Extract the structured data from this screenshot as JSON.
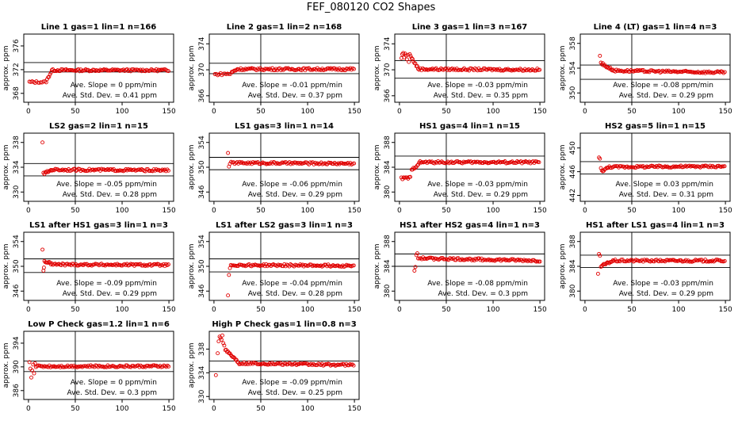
{
  "page_title": "FEF_080120  CO2 Shapes",
  "style": {
    "point_color": "#e00000",
    "line_color": "#000000",
    "background": "#ffffff"
  },
  "ylabel": "approx. ppm",
  "slope_prefix": "Ave. Slope =",
  "slope_unit": "ppm/min",
  "std_prefix": "Ave. Std. Dev. =",
  "std_unit": "ppm",
  "chart_data": [
    {
      "type": "scatter",
      "title": "Line 1 gas=1 lin=1 n=166",
      "x_ticks": [
        0,
        50,
        100,
        150
      ],
      "y_ticks": [
        368,
        372,
        376
      ],
      "ylim": [
        366.5,
        378
      ],
      "hlines": [
        371.6,
        373.2
      ],
      "vline": 50,
      "slope": "0",
      "std": "0.41",
      "segments": [
        {
          "x0": 1,
          "x1": 18,
          "step": 1.5,
          "y0": 369.9,
          "y1": 369.9
        },
        {
          "x0": 19,
          "x1": 25,
          "step": 1,
          "y0": 370,
          "y1": 371.9
        },
        {
          "x0": 26,
          "x1": 150,
          "step": 1.3,
          "y0": 371.9,
          "y1": 371.9
        }
      ],
      "points": []
    },
    {
      "type": "scatter",
      "title": "Line 2 gas=1 lin=2 n=168",
      "x_ticks": [
        0,
        50,
        100,
        150
      ],
      "y_ticks": [
        366,
        370,
        374
      ],
      "ylim": [
        365,
        375.5
      ],
      "hlines": [
        369.4,
        371
      ],
      "vline": 50,
      "slope": "-0.01",
      "std": "0.37",
      "segments": [
        {
          "x0": 1,
          "x1": 18,
          "step": 1.5,
          "y0": 369.3,
          "y1": 369.4
        },
        {
          "x0": 19,
          "x1": 25,
          "step": 1,
          "y0": 369.6,
          "y1": 370.1
        },
        {
          "x0": 26,
          "x1": 150,
          "step": 1.3,
          "y0": 370.1,
          "y1": 370.1
        }
      ],
      "points": []
    },
    {
      "type": "scatter",
      "title": "Line 3 gas=1 lin=3 n=167",
      "x_ticks": [
        0,
        50,
        100,
        150
      ],
      "y_ticks": [
        366,
        370,
        374
      ],
      "ylim": [
        365,
        375.5
      ],
      "hlines": [
        371.4,
        368.7
      ],
      "vline": 50,
      "slope": "-0.03",
      "std": "0.35",
      "segments": [
        {
          "x0": 13,
          "x1": 20,
          "step": 1,
          "y0": 371.8,
          "y1": 370.2
        },
        {
          "x0": 21,
          "x1": 150,
          "step": 1.3,
          "y0": 370.1,
          "y1": 370.0
        }
      ],
      "points": [
        [
          2,
          371.8
        ],
        [
          3,
          372.4
        ],
        [
          4,
          372.6
        ],
        [
          5,
          371.9
        ],
        [
          6,
          372.5
        ],
        [
          7,
          372.2
        ],
        [
          8,
          371.6
        ],
        [
          9,
          372.3
        ],
        [
          10,
          371.2
        ],
        [
          11,
          372.4
        ],
        [
          12,
          372.1
        ]
      ]
    },
    {
      "type": "scatter",
      "title": "Line 4 (LT) gas=1 lin=4 n=3",
      "x_ticks": [
        0,
        50,
        100,
        150
      ],
      "y_ticks": [
        350,
        354,
        358
      ],
      "ylim": [
        348.5,
        359.5
      ],
      "hlines": [
        354.5,
        352.2
      ],
      "vline": 50,
      "slope": "-0.08",
      "std": "0.29",
      "segments": [
        {
          "x0": 20,
          "x1": 30,
          "step": 1,
          "y0": 354.5,
          "y1": 353.7
        },
        {
          "x0": 31,
          "x1": 150,
          "step": 1.3,
          "y0": 353.6,
          "y1": 353.3
        }
      ],
      "points": [
        [
          16,
          356
        ],
        [
          17,
          354.9
        ],
        [
          18,
          354.6
        ],
        [
          19,
          354.8
        ]
      ]
    },
    {
      "type": "scatter",
      "title": "LS2 gas=2 lin=1 n=15",
      "x_ticks": [
        0,
        50,
        100,
        150
      ],
      "y_ticks": [
        330,
        334,
        338
      ],
      "ylim": [
        328.5,
        339.5
      ],
      "hlines": [
        334.6,
        332.6
      ],
      "vline": 50,
      "slope": "-0.05",
      "std": "0.28",
      "segments": [
        {
          "x0": 17,
          "x1": 25,
          "step": 1,
          "y0": 333,
          "y1": 333.6
        },
        {
          "x0": 26,
          "x1": 150,
          "step": 1.3,
          "y0": 333.6,
          "y1": 333.5
        }
      ],
      "points": [
        [
          15,
          338
        ],
        [
          16,
          333.1
        ]
      ]
    },
    {
      "type": "scatter",
      "title": "LS1 gas=3 lin=1 n=14",
      "x_ticks": [
        0,
        50,
        100,
        150
      ],
      "y_ticks": [
        346,
        350,
        354
      ],
      "ylim": [
        344.5,
        355.5
      ],
      "hlines": [
        351.6,
        349.6
      ],
      "vline": 50,
      "slope": "-0.06",
      "std": "0.29",
      "segments": [
        {
          "x0": 17,
          "x1": 150,
          "step": 1.3,
          "y0": 350.7,
          "y1": 350.6
        }
      ],
      "points": [
        [
          15,
          352.3
        ],
        [
          16,
          350.1
        ]
      ]
    },
    {
      "type": "scatter",
      "title": "HS1 gas=4 lin=1 n=15",
      "x_ticks": [
        0,
        50,
        100,
        150
      ],
      "y_ticks": [
        380,
        384,
        388
      ],
      "ylim": [
        378.5,
        389.5
      ],
      "hlines": [
        385.8,
        383.7
      ],
      "vline": 50,
      "slope": "-0.03",
      "std": "0.29",
      "segments": [
        {
          "x0": 2,
          "x1": 12,
          "step": 1.2,
          "y0": 382.2,
          "y1": 382.3
        },
        {
          "x0": 13,
          "x1": 22,
          "step": 1,
          "y0": 383.5,
          "y1": 384.8
        },
        {
          "x0": 23,
          "x1": 150,
          "step": 1.3,
          "y0": 384.8,
          "y1": 384.8
        }
      ],
      "points": []
    },
    {
      "type": "scatter",
      "title": "HS2 gas=5 lin=1 n=15",
      "x_ticks": [
        0,
        50,
        100,
        150
      ],
      "y_ticks": [
        442,
        446,
        450
      ],
      "ylim": [
        441,
        452.5
      ],
      "hlines": [
        447.7,
        445.6
      ],
      "vline": 50,
      "slope": "0.03",
      "std": "0.31",
      "segments": [
        {
          "x0": 18,
          "x1": 26,
          "step": 1,
          "y0": 446.1,
          "y1": 446.8
        },
        {
          "x0": 27,
          "x1": 150,
          "step": 1.3,
          "y0": 446.8,
          "y1": 446.9
        }
      ],
      "points": [
        [
          15,
          448.4
        ],
        [
          16,
          448.2
        ],
        [
          17,
          446.6
        ]
      ]
    },
    {
      "type": "scatter",
      "title": "LS1 after HS1 gas=3 lin=1 n=3",
      "x_ticks": [
        0,
        50,
        100,
        150
      ],
      "y_ticks": [
        346,
        350,
        354
      ],
      "ylim": [
        344.5,
        355.5
      ],
      "hlines": [
        351.2,
        349
      ],
      "vline": 50,
      "slope": "-0.09",
      "std": "0.29",
      "segments": [
        {
          "x0": 17,
          "x1": 25,
          "step": 1,
          "y0": 350.8,
          "y1": 350.4
        },
        {
          "x0": 26,
          "x1": 150,
          "step": 1.3,
          "y0": 350.3,
          "y1": 350.2
        }
      ],
      "points": [
        [
          15,
          352.7
        ],
        [
          16,
          349.3
        ],
        [
          16.5,
          349.8
        ]
      ]
    },
    {
      "type": "scatter",
      "title": "LS1 after LS2 gas=3 lin=1 n=3",
      "x_ticks": [
        0,
        50,
        100,
        150
      ],
      "y_ticks": [
        346,
        350,
        354
      ],
      "ylim": [
        344.5,
        355.5
      ],
      "hlines": [
        351.2,
        349.1
      ],
      "vline": 50,
      "slope": "-0.04",
      "std": "0.28",
      "segments": [
        {
          "x0": 18,
          "x1": 150,
          "step": 1.3,
          "y0": 350.2,
          "y1": 350.1
        }
      ],
      "points": [
        [
          15,
          345.3
        ],
        [
          16,
          348.6
        ],
        [
          17,
          349.7
        ]
      ]
    },
    {
      "type": "scatter",
      "title": "HS1 after HS2 gas=4 lin=1 n=3",
      "x_ticks": [
        0,
        50,
        100,
        150
      ],
      "y_ticks": [
        380,
        384,
        388
      ],
      "ylim": [
        378.5,
        389.5
      ],
      "hlines": [
        386,
        384
      ],
      "vline": 50,
      "slope": "-0.08",
      "std": "0.3",
      "segments": [
        {
          "x0": 20,
          "x1": 150,
          "step": 1.3,
          "y0": 385.3,
          "y1": 384.9
        }
      ],
      "points": [
        [
          16,
          383.3
        ],
        [
          17,
          383.9
        ],
        [
          18,
          385.8
        ],
        [
          19,
          386.1
        ]
      ]
    },
    {
      "type": "scatter",
      "title": "HS1 after LS1 gas=4 lin=1 n=3",
      "x_ticks": [
        0,
        50,
        100,
        150
      ],
      "y_ticks": [
        380,
        384,
        388
      ],
      "ylim": [
        378.5,
        389.5
      ],
      "hlines": [
        385.8,
        383.8
      ],
      "vline": 50,
      "slope": "-0.03",
      "std": "0.29",
      "segments": [
        {
          "x0": 17,
          "x1": 30,
          "step": 1,
          "y0": 384,
          "y1": 384.9
        },
        {
          "x0": 31,
          "x1": 150,
          "step": 1.3,
          "y0": 384.9,
          "y1": 384.9
        }
      ],
      "points": [
        [
          14,
          382.8
        ],
        [
          15,
          386
        ],
        [
          16,
          385.7
        ]
      ]
    },
    {
      "type": "scatter",
      "title": "Low P Check gas=1.2 lin=1 n=6",
      "x_ticks": [
        0,
        50,
        100,
        150
      ],
      "y_ticks": [
        386,
        390,
        394
      ],
      "ylim": [
        384.5,
        396
      ],
      "hlines": [
        391,
        389.2
      ],
      "vline": 50,
      "slope": "0",
      "std": "0.3",
      "segments": [
        {
          "x0": 8,
          "x1": 150,
          "step": 1.3,
          "y0": 390.1,
          "y1": 390.1
        }
      ],
      "points": [
        [
          1,
          390.8
        ],
        [
          2,
          389.7
        ],
        [
          3,
          388.2
        ],
        [
          4,
          389.4
        ],
        [
          5,
          390.4
        ],
        [
          6,
          388.9
        ],
        [
          7,
          390.6
        ]
      ]
    },
    {
      "type": "scatter",
      "title": "High P Check gas=1 lin=0.8 n=3",
      "x_ticks": [
        0,
        50,
        100,
        150
      ],
      "y_ticks": [
        330,
        334,
        338
      ],
      "ylim": [
        329.5,
        341
      ],
      "hlines": [
        336,
        334.2
      ],
      "vline": 50,
      "slope": "-0.09",
      "std": "0.25",
      "segments": [
        {
          "x0": 12,
          "x1": 26,
          "step": 1,
          "y0": 338,
          "y1": 335.8
        },
        {
          "x0": 27,
          "x1": 150,
          "step": 1.3,
          "y0": 335.6,
          "y1": 335.3
        }
      ],
      "points": [
        [
          2,
          333.6
        ],
        [
          4,
          337.3
        ],
        [
          5,
          339.3
        ],
        [
          6,
          340.1
        ],
        [
          7,
          339.9
        ],
        [
          8,
          339.6
        ],
        [
          9,
          340.3
        ],
        [
          10,
          339
        ],
        [
          11,
          338.6
        ]
      ]
    }
  ]
}
